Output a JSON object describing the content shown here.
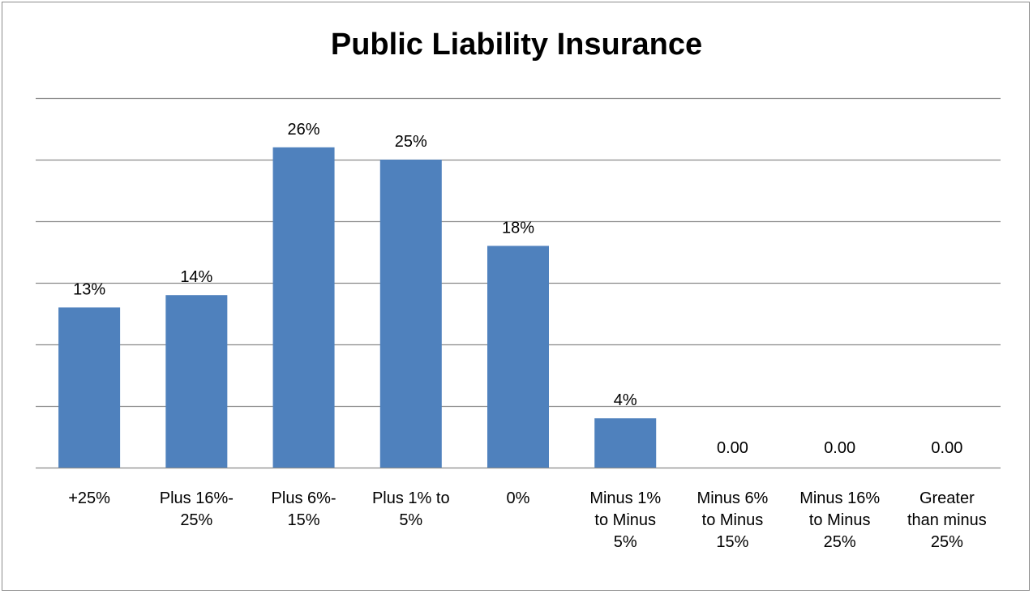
{
  "chart_data": {
    "type": "bar",
    "title": "Public Liability Insurance",
    "categories": [
      [
        "+25%"
      ],
      [
        "Plus 16%-",
        "25%"
      ],
      [
        "Plus 6%-",
        "15%"
      ],
      [
        "Plus 1% to",
        "5%"
      ],
      [
        "0%"
      ],
      [
        "Minus 1%",
        "to Minus",
        "5%"
      ],
      [
        "Minus 6%",
        "to Minus",
        "15%"
      ],
      [
        "Minus 16%",
        "to Minus",
        "25%"
      ],
      [
        "Greater",
        "than minus",
        "25%"
      ]
    ],
    "values": [
      0.13,
      0.14,
      0.26,
      0.25,
      0.18,
      0.04,
      0,
      0,
      0
    ],
    "data_labels": [
      "13%",
      "14%",
      "26%",
      "25%",
      "18%",
      "4%",
      "0.00",
      "0.00",
      "0.00"
    ],
    "ylim": [
      0,
      0.3
    ],
    "ytick_step": 0.05,
    "ytick_labels_shown": false,
    "grid": true,
    "legend": "none",
    "bar_color": "#4f81bd",
    "grid_color": "#8a8a8a"
  }
}
